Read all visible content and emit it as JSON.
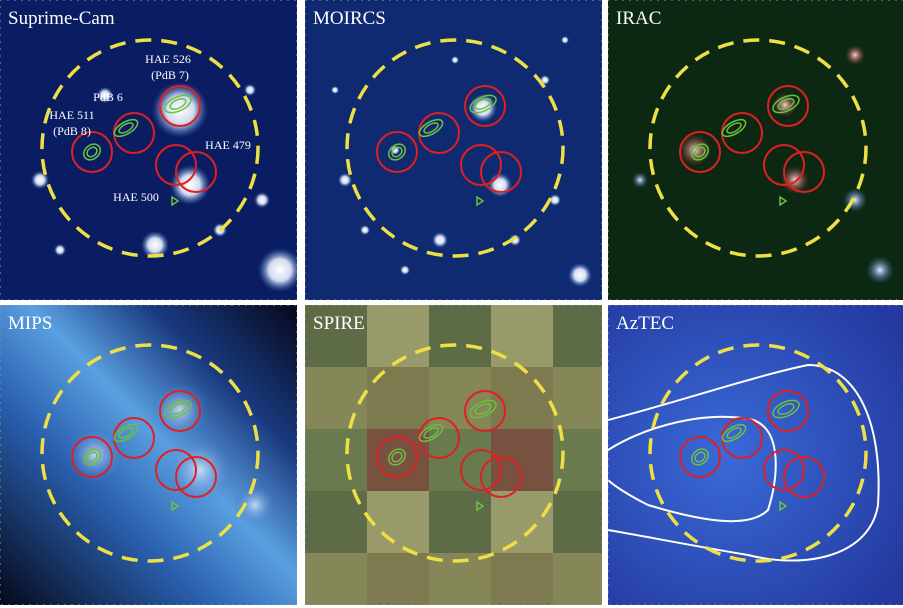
{
  "panels": [
    {
      "title": "Suprime-Cam",
      "labels": [
        "HAE 526",
        "(PdB 7)",
        "PdB 6",
        "HAE 511",
        "(PdB 8)",
        "HAE 479",
        "HAE 500"
      ]
    },
    {
      "title": "MOIRCS"
    },
    {
      "title": "IRAC"
    },
    {
      "title": "MIPS"
    },
    {
      "title": "SPIRE"
    },
    {
      "title": "AzTEC"
    }
  ]
}
